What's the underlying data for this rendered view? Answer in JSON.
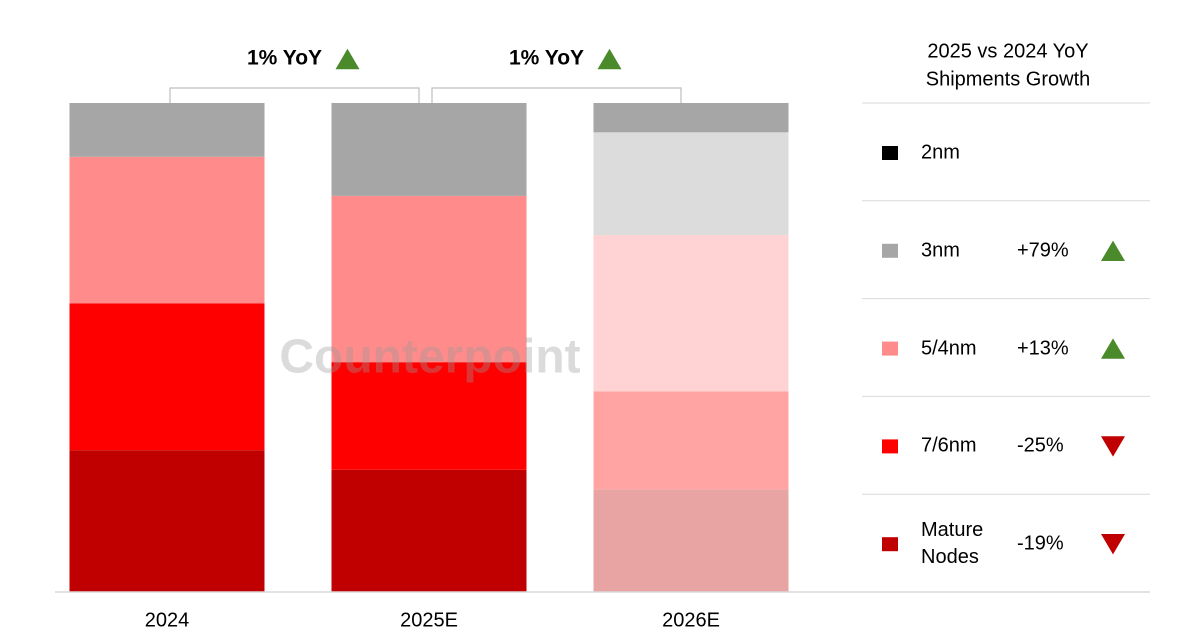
{
  "chart_data": {
    "type": "stacked-bar",
    "categories": [
      "2024",
      "2025E",
      "2026E"
    ],
    "ylim": [
      0,
      100
    ],
    "legend_title": [
      "2025 vs 2024 YoY",
      "Shipments Growth"
    ],
    "watermark": "Counterpoint",
    "series": [
      {
        "name": "Mature Nodes",
        "color": "#c00000",
        "colors": [
          "#c00000",
          "#c00000",
          "#e8a3a3"
        ],
        "values": [
          29,
          25,
          21
        ],
        "growth": "-19%",
        "trend": "down"
      },
      {
        "name": "7/6nm",
        "color": "#ff0000",
        "colors": [
          "#ff0000",
          "#ff0000",
          "#ffa3a3"
        ],
        "values": [
          30,
          22,
          20
        ],
        "growth": "-25%",
        "trend": "down"
      },
      {
        "name": "5/4nm",
        "color": "#ff8b8b",
        "colors": [
          "#ff8b8b",
          "#ff8b8b",
          "#ffd3d3"
        ],
        "values": [
          30,
          34,
          32
        ],
        "growth": "+13%",
        "trend": "up"
      },
      {
        "name": "3nm",
        "color": "#a6a6a6",
        "colors": [
          "#a6a6a6",
          "#a6a6a6",
          "#dcdcdc"
        ],
        "values": [
          11,
          19,
          21
        ],
        "growth": "+79%",
        "trend": "up"
      },
      {
        "name": "2nm",
        "color": "#000000",
        "colors": [
          "#000000",
          "#000000",
          "#a6a6a6"
        ],
        "values": [
          0,
          0,
          6
        ]
      }
    ],
    "annotations": [
      {
        "text": "1% YoY",
        "from": 0,
        "to": 1,
        "trend": "up"
      },
      {
        "text": "1% YoY",
        "from": 1,
        "to": 2,
        "trend": "up"
      }
    ]
  }
}
